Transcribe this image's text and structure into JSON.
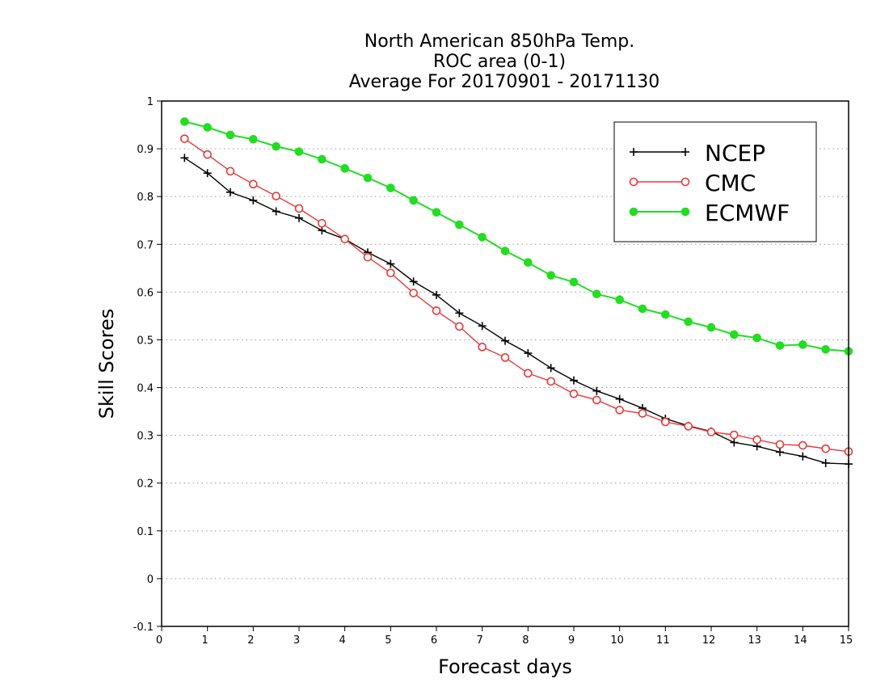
{
  "chart_data": {
    "type": "line",
    "title_lines": [
      "North American 850hPa Temp.",
      "ROC area (0-1)",
      "Average For 20170901 - 20171130"
    ],
    "xlabel": "Forecast days",
    "ylabel": "Skill Scores",
    "xlim": [
      0,
      15
    ],
    "ylim": [
      -0.1,
      1
    ],
    "x_ticks": [
      "0",
      "1",
      "2",
      "3",
      "4",
      "5",
      "6",
      "7",
      "8",
      "9",
      "10",
      "11",
      "12",
      "13",
      "14",
      "15"
    ],
    "y_ticks": [
      "-0.1",
      "0",
      "0.1",
      "0.2",
      "0.3",
      "0.4",
      "0.5",
      "0.6",
      "0.7",
      "0.8",
      "0.9",
      "1"
    ],
    "grid": "horizontal dotted",
    "legend_position": "top-right",
    "x": [
      0.5,
      1,
      1.5,
      2,
      2.5,
      3,
      3.5,
      4,
      4.5,
      5,
      5.5,
      6,
      6.5,
      7,
      7.5,
      8,
      8.5,
      9,
      9.5,
      10,
      10.5,
      11,
      11.5,
      12,
      12.5,
      13,
      13.5,
      14,
      14.5,
      15
    ],
    "series": [
      {
        "name": "NCEP",
        "color": "#000000",
        "marker": "plus",
        "values": [
          0.881,
          0.849,
          0.809,
          0.792,
          0.769,
          0.755,
          0.729,
          0.711,
          0.683,
          0.659,
          0.622,
          0.594,
          0.556,
          0.529,
          0.498,
          0.472,
          0.441,
          0.415,
          0.393,
          0.376,
          0.357,
          0.335,
          0.32,
          0.308,
          0.285,
          0.277,
          0.265,
          0.256,
          0.242,
          0.24
        ]
      },
      {
        "name": "CMC",
        "color": "#e8393a",
        "marker": "open-circle",
        "values": [
          0.921,
          0.888,
          0.853,
          0.826,
          0.801,
          0.775,
          0.744,
          0.711,
          0.673,
          0.64,
          0.598,
          0.561,
          0.528,
          0.485,
          0.463,
          0.43,
          0.413,
          0.387,
          0.374,
          0.353,
          0.346,
          0.328,
          0.319,
          0.307,
          0.301,
          0.291,
          0.281,
          0.279,
          0.272,
          0.266
        ]
      },
      {
        "name": "ECMWF",
        "color": "#22dd22",
        "marker": "filled-circle",
        "values": [
          0.957,
          0.945,
          0.929,
          0.92,
          0.905,
          0.894,
          0.878,
          0.859,
          0.839,
          0.818,
          0.792,
          0.767,
          0.741,
          0.715,
          0.686,
          0.662,
          0.635,
          0.621,
          0.596,
          0.584,
          0.565,
          0.553,
          0.538,
          0.526,
          0.511,
          0.504,
          0.488,
          0.49,
          0.48,
          0.476
        ]
      }
    ]
  }
}
